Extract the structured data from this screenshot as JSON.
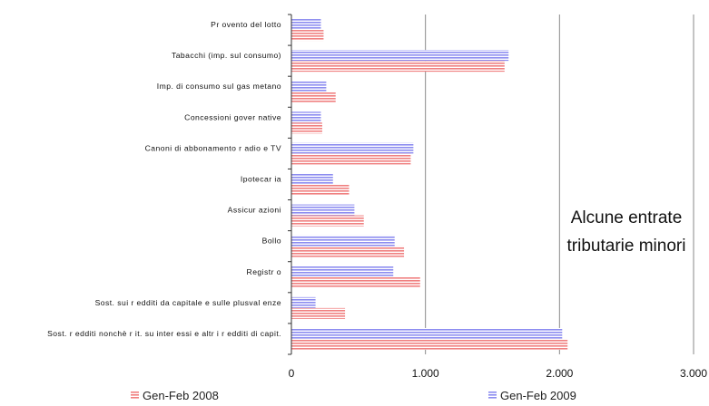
{
  "chart_data": {
    "type": "bar",
    "orientation": "horizontal",
    "categories": [
      "Pr ovento del lotto",
      "Tabacchi (imp. sul consumo)",
      "Imp. di consumo sul gas metano",
      "Concessioni gover native",
      "Canoni di abbonamento r adio e TV",
      "Ipotecar ia",
      "Assicur azioni",
      "Bollo",
      "Registr o",
      "Sost. sui r edditi da capitale e sulle plusval enze",
      "Sost. r edditi nonchè r it. su inter essi e altr i r edditi di capit."
    ],
    "series": [
      {
        "name": "Gen-Feb 2009",
        "color": "#8c8cf0",
        "values": [
          220,
          1620,
          260,
          220,
          910,
          310,
          470,
          770,
          760,
          180,
          2020
        ]
      },
      {
        "name": "Gen-Feb 2008",
        "color": "#f08080",
        "values": [
          240,
          1590,
          330,
          230,
          890,
          430,
          540,
          840,
          960,
          400,
          2060
        ]
      }
    ],
    "xlim": [
      0,
      3000
    ],
    "x_ticks": [
      "0",
      "1.000",
      "2.000",
      "3.000"
    ],
    "x_tick_values": [
      0,
      1000,
      2000,
      3000
    ],
    "grid": "vertical",
    "legend": "bottom",
    "legend_order": [
      "Gen-Feb 2008",
      "Gen-Feb 2009"
    ],
    "annotation": [
      "Alcune entrate",
      "tributarie minori"
    ]
  }
}
